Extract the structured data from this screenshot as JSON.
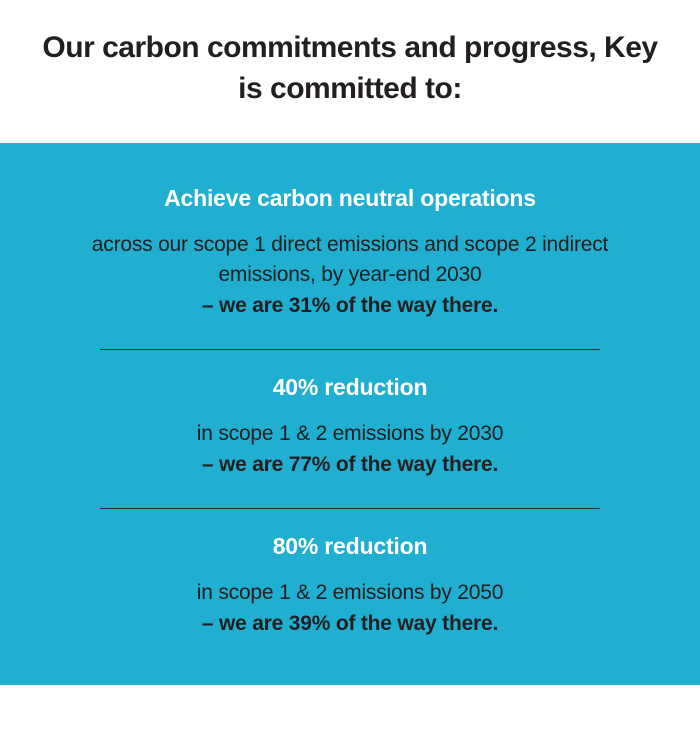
{
  "header": {
    "title": "Our carbon commitments and progress, Key is committed to:"
  },
  "panel": {
    "background_color": "#20afd0",
    "text_color_light": "#ffffff",
    "text_color_dark": "#231f20"
  },
  "commitments": [
    {
      "title": "Achieve carbon neutral operations",
      "desc": "across our scope 1 direct emissions and scope 2 indirect emissions, by year-end 2030",
      "progress": "– we are 31% of the way there."
    },
    {
      "title": "40% reduction",
      "desc": "in scope 1 & 2 emissions by 2030",
      "progress": "– we are 77% of the way there."
    },
    {
      "title": "80% reduction",
      "desc": "in scope 1 & 2 emissions by 2050",
      "progress": "– we are 39% of the way there."
    }
  ]
}
